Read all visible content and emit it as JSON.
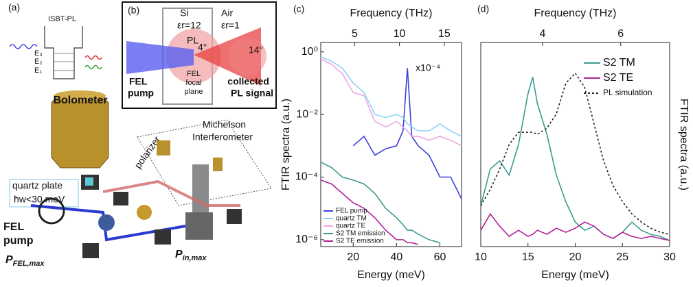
{
  "diagram": {
    "panel_a": "(a)",
    "isbt": "ISBT-PL",
    "levels": [
      "E₃",
      "E₂",
      "E₁"
    ],
    "bolometer": "Bolometer",
    "michelson": [
      "Michelson",
      "Interferometer"
    ],
    "polarizer": "polarizer",
    "quartz": [
      "quartz plate",
      "ħw<30 meV"
    ],
    "fel_pump": [
      "FEL",
      "pump"
    ],
    "p_fel": {
      "symbol": "P",
      "subscript": "FEL,max"
    },
    "p_in": {
      "symbol": "P",
      "subscript": "in,max"
    },
    "panel_b": "(b)",
    "si": "Si",
    "si_eps": "εr=12",
    "air": "Air",
    "air_eps": "εr=1",
    "pl": "PL",
    "angle_in": "4°",
    "angle_out": "14°",
    "b_fel_pump": [
      "FEL",
      "pump"
    ],
    "focal": [
      "FEL",
      "focal",
      "plane"
    ],
    "collected": [
      "collected",
      "PL signal"
    ]
  },
  "chart_data": [
    {
      "type": "line",
      "panel_label": "(c)",
      "xlabel": "Energy (meV)",
      "x2label": "Frequency (THz)",
      "ylabel": "FTIR spectra (a.u.)",
      "annotation": "x10⁻⁴",
      "xlim": [
        5,
        70
      ],
      "xticks": [
        20,
        40,
        60
      ],
      "x2lim": [
        1.21,
        16.93
      ],
      "x2ticks": [
        5,
        10,
        15
      ],
      "ylog": true,
      "ylim": [
        6e-07,
        2
      ],
      "yticks": [
        {
          "value": 1e-06,
          "label": "10⁻⁶"
        },
        {
          "value": 0.0001,
          "label": "10⁻⁴"
        },
        {
          "value": 0.01,
          "label": "10⁻²"
        },
        {
          "value": 1,
          "label": "10⁰"
        }
      ],
      "legend": "lower left",
      "x": [
        5,
        10,
        15,
        20,
        25,
        30,
        35,
        40,
        43,
        45,
        47,
        50,
        55,
        60,
        65,
        70
      ],
      "series": [
        {
          "name": "FEL pump",
          "color": "#3b3fdc",
          "values": [
            null,
            null,
            null,
            0.001,
            0.002,
            0.0005,
            0.0008,
            0.001,
            0.003,
            0.3,
            0.002,
            0.001,
            0.0005,
            0.0001,
            0.0001,
            2e-05
          ]
        },
        {
          "name": "quartz TM",
          "color": "#8fd0f8",
          "values": [
            0.7,
            0.5,
            0.3,
            0.1,
            0.05,
            0.01,
            0.008,
            0.01,
            0.008,
            0.005,
            0.004,
            0.003,
            0.003,
            0.005,
            0.003,
            0.002
          ]
        },
        {
          "name": "quartz TE",
          "color": "#eea6e4",
          "values": [
            0.6,
            0.4,
            0.2,
            0.05,
            0.04,
            0.006,
            0.004,
            0.006,
            0.004,
            0.003,
            0.002,
            0.002,
            0.0015,
            0.002,
            0.0015,
            0.001
          ]
        },
        {
          "name": "S2 TM emission",
          "color": "#3a9a90",
          "values": [
            0.0003,
            0.0002,
            0.0001,
            8e-05,
            6e-05,
            3e-05,
            1e-05,
            5e-06,
            3e-06,
            2e-06,
            2e-06,
            1.5e-06,
            1e-06,
            8e-07,
            null,
            null
          ]
        },
        {
          "name": "S2 TE emission",
          "color": "#b0209a",
          "values": [
            8e-05,
            6e-05,
            3e-05,
            1.5e-05,
            1e-05,
            5e-06,
            2e-06,
            1e-06,
            1e-06,
            8e-07,
            8e-07,
            7e-07,
            null,
            null,
            null,
            null
          ]
        }
      ]
    },
    {
      "type": "line",
      "panel_label": "(d)",
      "xlabel": "Energy (meV)",
      "x2label": "Frequency (THz)",
      "ylabel": "FTIR spectra (a.u.)",
      "xlim": [
        10,
        30
      ],
      "xticks": [
        10,
        15,
        20,
        25,
        30
      ],
      "x2lim": [
        2.418,
        7.254
      ],
      "x2ticks": [
        4,
        6
      ],
      "ylim": [
        0,
        1
      ],
      "legend": "upper right",
      "x": [
        10,
        11,
        12,
        13,
        14,
        15,
        15.5,
        16,
        17,
        18,
        19,
        20,
        21,
        22,
        23,
        24,
        25,
        26,
        27,
        28,
        29,
        30
      ],
      "series": [
        {
          "name": "S2 TM",
          "color": "#3a9a90",
          "values": [
            0.2,
            0.38,
            0.42,
            0.35,
            0.5,
            0.75,
            0.83,
            0.7,
            0.55,
            0.35,
            0.22,
            0.12,
            0.08,
            0.1,
            0.06,
            0.04,
            0.07,
            0.12,
            0.08,
            0.06,
            0.05,
            0.03
          ]
        },
        {
          "name": "S2 TE",
          "color": "#b0209a",
          "values": [
            0.08,
            0.16,
            0.1,
            0.05,
            0.08,
            0.05,
            0.06,
            0.08,
            0.06,
            0.09,
            0.07,
            0.09,
            0.12,
            0.1,
            0.06,
            0.04,
            0.07,
            0.05,
            0.04,
            0.05,
            0.04,
            0.03
          ]
        },
        {
          "name": "PL simulation",
          "color": "#222222",
          "dash": true,
          "values": [
            0.2,
            0.28,
            0.38,
            0.5,
            0.56,
            0.56,
            0.56,
            0.55,
            0.58,
            0.65,
            0.8,
            0.85,
            0.78,
            0.6,
            0.42,
            0.3,
            0.22,
            0.16,
            0.12,
            0.09,
            0.07,
            0.06
          ]
        }
      ]
    }
  ]
}
